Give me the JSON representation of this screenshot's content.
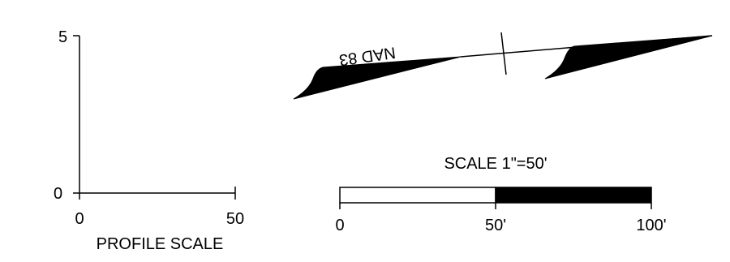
{
  "profile_scale": {
    "y_ticks": [
      "5",
      "0"
    ],
    "x_ticks": [
      "0",
      "50"
    ],
    "label": "PROFILE SCALE"
  },
  "north_arrow": {
    "datum_label": "NAD 83"
  },
  "bar_scale": {
    "title": "SCALE 1\"=50'",
    "tick_labels": [
      "0",
      "50'",
      "100'"
    ]
  }
}
